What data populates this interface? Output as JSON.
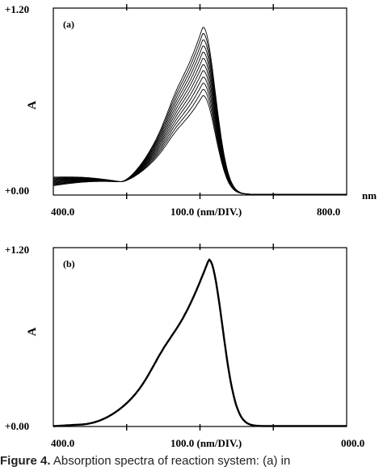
{
  "chart_data": [
    {
      "type": "line",
      "panel_label": "(a)",
      "ylabel": "A",
      "y_top_label": "+1.20",
      "y_bottom_label": "+0.00",
      "ylim": [
        0,
        1.2
      ],
      "xlim": [
        0,
        4
      ],
      "x_unit": "nm",
      "x_tick_labels": [
        "400.0",
        "100.0 (nm/DIV.)",
        "800.0"
      ],
      "grid": false,
      "series_count": 12,
      "series_description": "12 overlaid absorption spectra",
      "peak_x_fraction": 0.51,
      "peak_values": [
        0.64,
        0.68,
        0.72,
        0.76,
        0.8,
        0.84,
        0.88,
        0.92,
        0.96,
        1.0,
        1.04,
        1.08
      ],
      "low_end_values": [
        0.06,
        0.065,
        0.07,
        0.075,
        0.08,
        0.085,
        0.09,
        0.095,
        0.1,
        0.105,
        0.11,
        0.115
      ],
      "isosbestic_value": 0.085
    },
    {
      "type": "line",
      "panel_label": "(b)",
      "ylabel": "A",
      "y_top_label": "+1.20",
      "y_bottom_label": "+0.00",
      "ylim": [
        0,
        1.2
      ],
      "xlim": [
        0,
        4
      ],
      "x_tick_labels": [
        "400.0",
        "100.0 (nm/DIV.)",
        "000.0"
      ],
      "grid": false,
      "series_count": 1,
      "peak_value": 1.12
    }
  ],
  "caption": {
    "label": "Figure 4.",
    "text": "Absorption spectra of reaction system: (a) in"
  },
  "colors": {
    "ink": "#000000",
    "caption_text": "#222222"
  }
}
